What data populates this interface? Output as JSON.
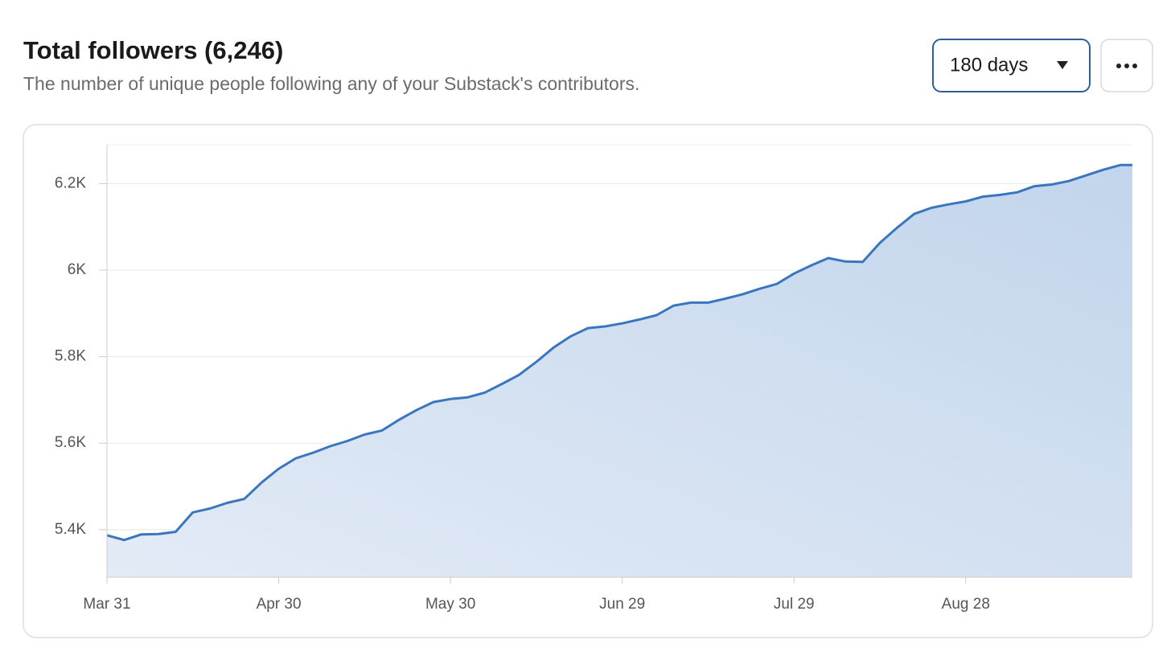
{
  "header": {
    "title": "Total followers (6,246)",
    "subtitle": "The number of unique people following any of your Substack's contributors.",
    "range_select": "180 days"
  },
  "chart_data": {
    "type": "line",
    "color": "#3a76bd",
    "grid": true,
    "x": [
      "Mar 31",
      "Apr 3",
      "Apr 6",
      "Apr 9",
      "Apr 12",
      "Apr 15",
      "Apr 18",
      "Apr 21",
      "Apr 24",
      "Apr 27",
      "Apr 30",
      "May 3",
      "May 6",
      "May 9",
      "May 12",
      "May 15",
      "May 18",
      "May 21",
      "May 24",
      "May 27",
      "May 30",
      "Jun 2",
      "Jun 5",
      "Jun 8",
      "Jun 11",
      "Jun 14",
      "Jun 17",
      "Jun 20",
      "Jun 23",
      "Jun 26",
      "Jun 29",
      "Jul 2",
      "Jul 5",
      "Jul 8",
      "Jul 11",
      "Jul 14",
      "Jul 17",
      "Jul 20",
      "Jul 23",
      "Jul 26",
      "Jul 29",
      "Aug 1",
      "Aug 4",
      "Aug 7",
      "Aug 10",
      "Aug 13",
      "Aug 16",
      "Aug 19",
      "Aug 22",
      "Aug 25",
      "Aug 28",
      "Aug 31",
      "Sep 3",
      "Sep 6",
      "Sep 9",
      "Sep 12",
      "Sep 15",
      "Sep 18",
      "Sep 21",
      "Sep 24"
    ],
    "values": [
      5387,
      5376,
      5389,
      5390,
      5395,
      5440,
      5449,
      5462,
      5471,
      5509,
      5541,
      5565,
      5578,
      5593,
      5605,
      5620,
      5629,
      5654,
      5676,
      5695,
      5702,
      5706,
      5717,
      5737,
      5758,
      5788,
      5821,
      5847,
      5866,
      5870,
      5877,
      5886,
      5896,
      5918,
      5925,
      5925,
      5934,
      5944,
      5957,
      5968,
      5992,
      6011,
      6028,
      6020,
      6019,
      6063,
      6098,
      6130,
      6144,
      6152,
      6159,
      6170,
      6174,
      6180,
      6194,
      6198,
      6206,
      6219,
      6232,
      6243
    ],
    "ylim": [
      5290,
      6290
    ],
    "yticks": [
      {
        "value": 5400,
        "label": "5.4K"
      },
      {
        "value": 5600,
        "label": "5.6K"
      },
      {
        "value": 5800,
        "label": "5.8K"
      },
      {
        "value": 6000,
        "label": "6K"
      },
      {
        "value": 6200,
        "label": "6.2K"
      }
    ],
    "xticks": [
      "Mar 31",
      "Apr 30",
      "May 30",
      "Jun 29",
      "Jul 29",
      "Aug 28"
    ]
  }
}
